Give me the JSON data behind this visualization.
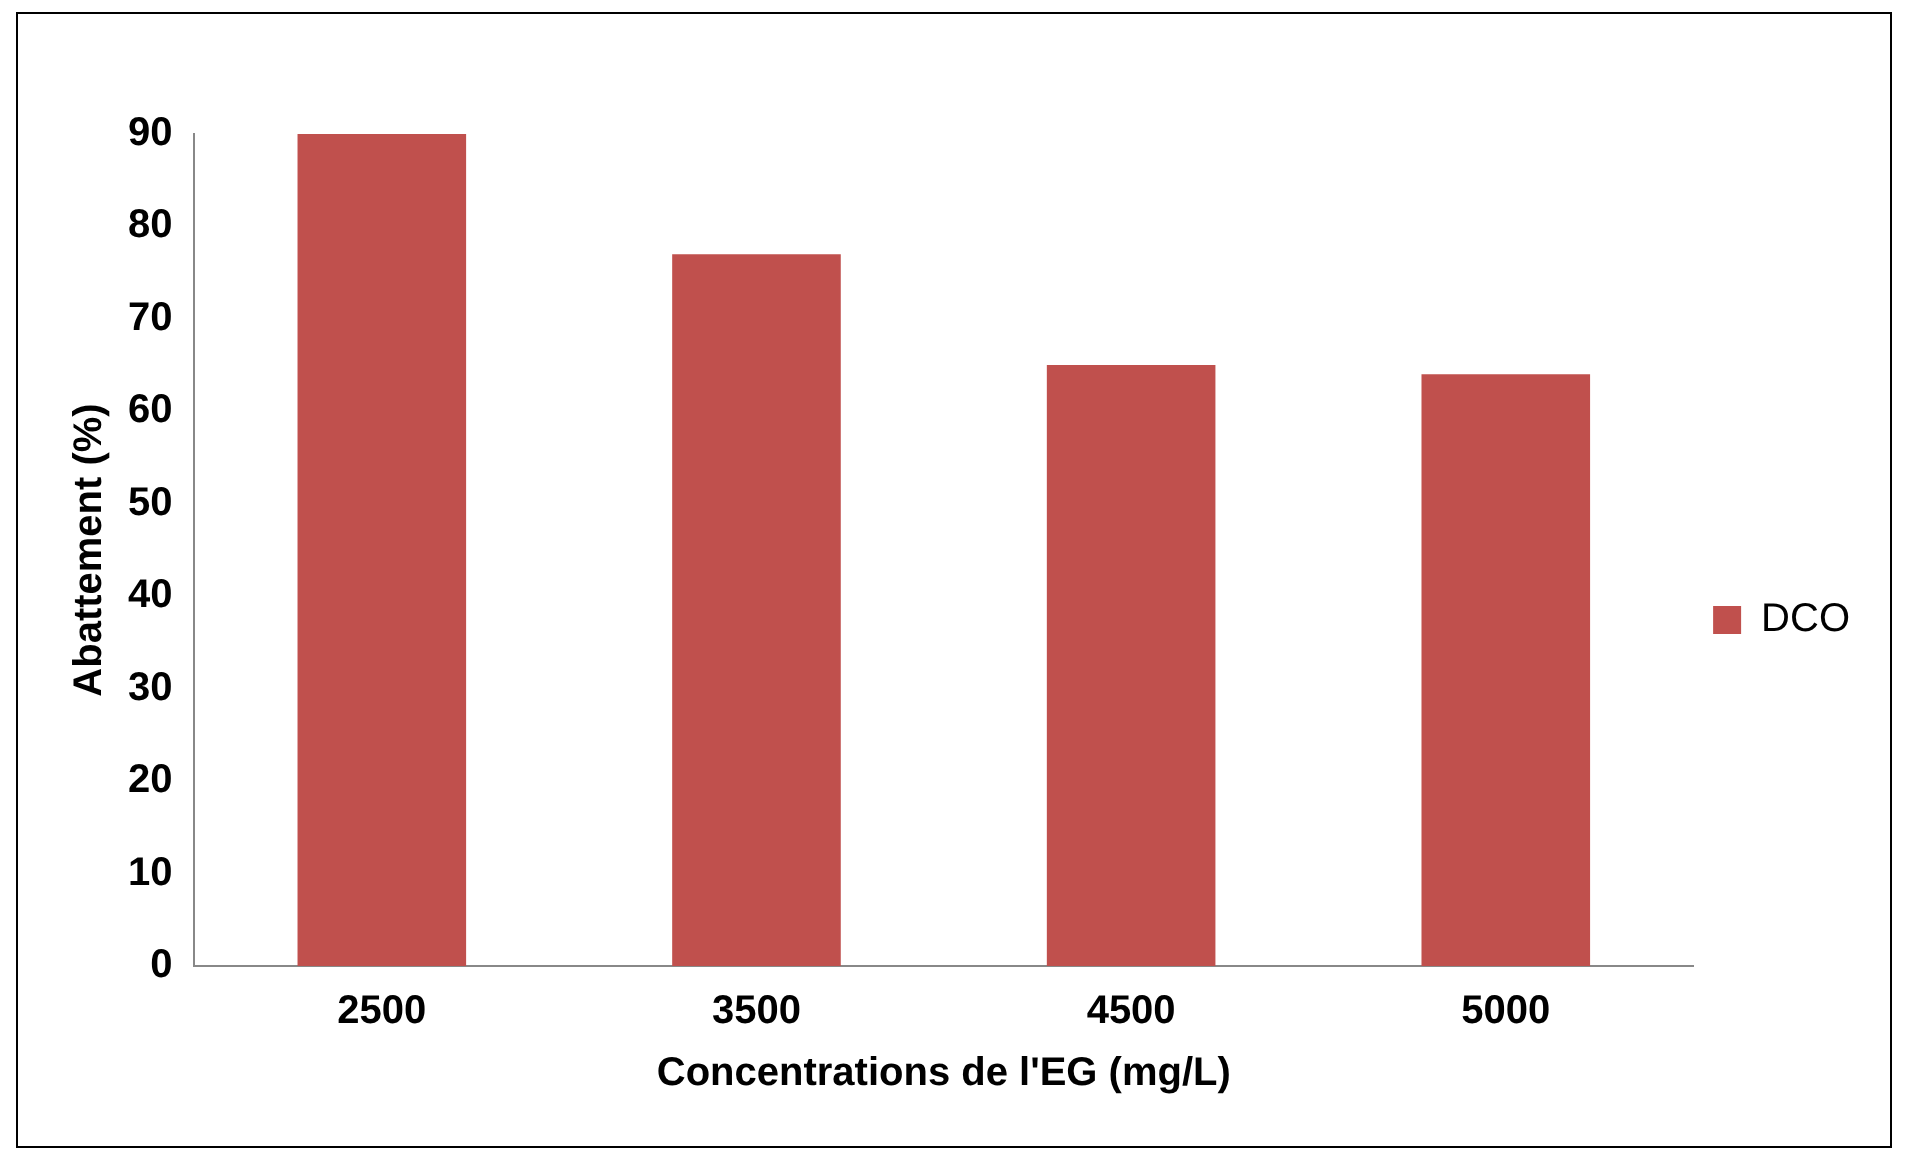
{
  "chart_data": {
    "type": "bar",
    "xlabel": "Concentrations de l'EG (mg/L)",
    "ylabel": "Abattement (%)",
    "categories": [
      "2500",
      "3500",
      "4500",
      "5000"
    ],
    "series": [
      {
        "name": "DCO",
        "color": "#c0504d",
        "values": [
          90,
          77,
          65,
          64
        ]
      }
    ],
    "ylim": [
      0,
      90
    ],
    "yticks": [
      0,
      10,
      20,
      30,
      40,
      50,
      60,
      70,
      80,
      90
    ],
    "grid": false,
    "legend": "right"
  }
}
